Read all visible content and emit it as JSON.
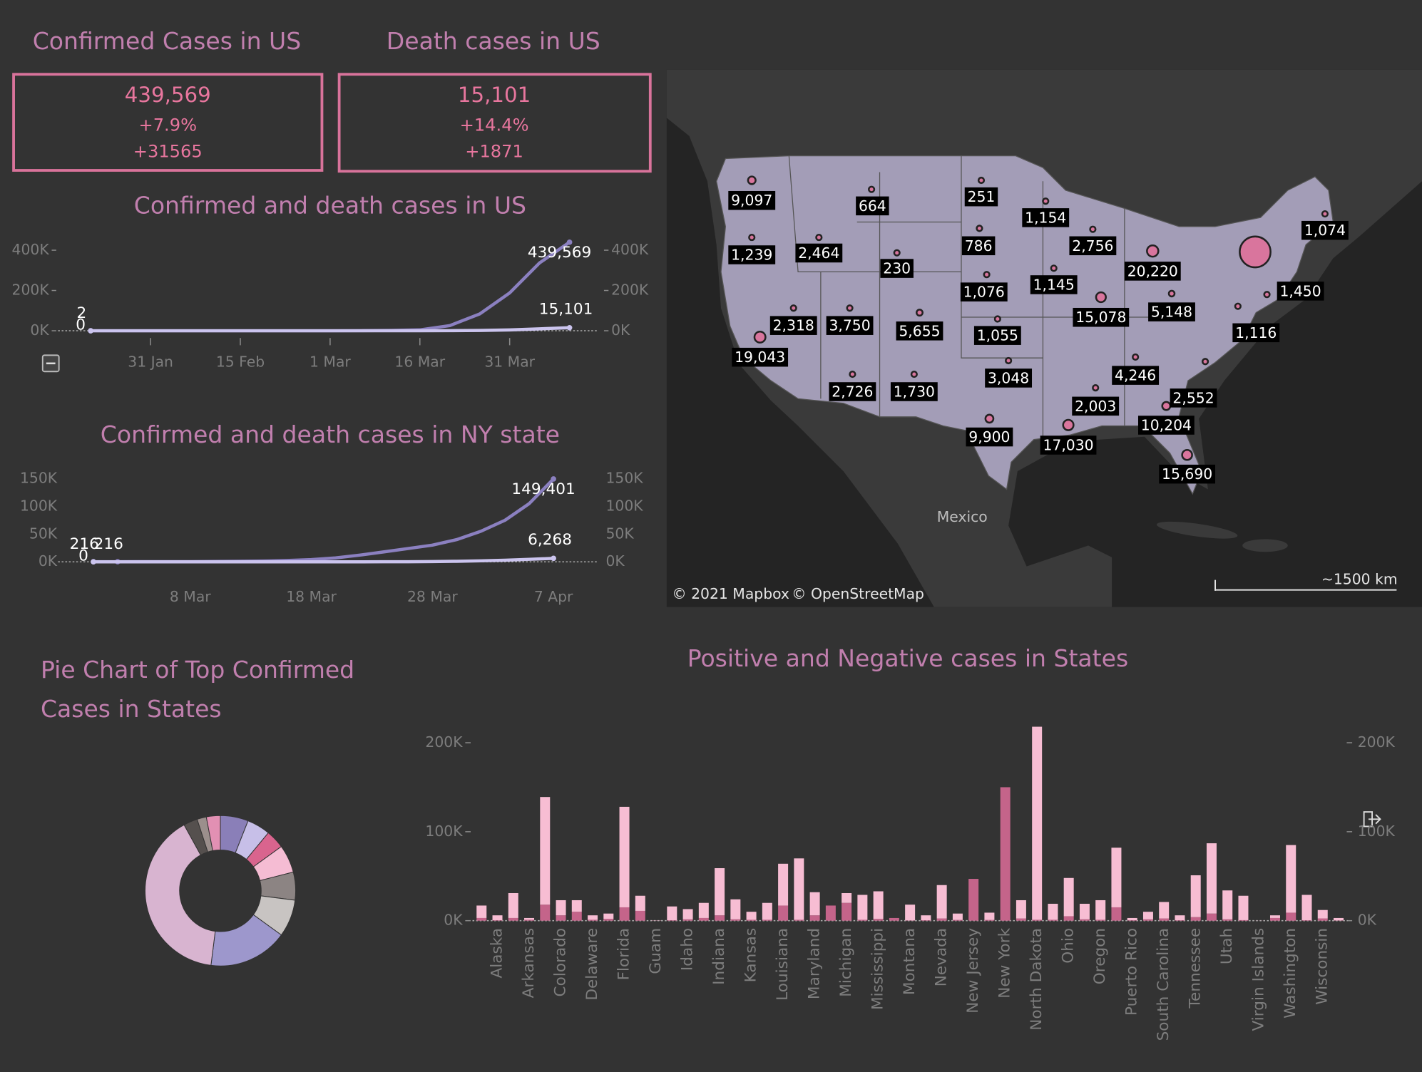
{
  "kpis": [
    {
      "title": "Confirmed Cases in US",
      "value": "439,569",
      "change_pct": "+7.9%",
      "change": "+31565"
    },
    {
      "title": "Death cases in US",
      "value": "15,101",
      "change_pct": "+14.4%",
      "change": "+1871"
    }
  ],
  "chart_data": [
    {
      "type": "line",
      "title": "Confirmed and death cases in US",
      "categories": [
        null,
        null,
        "31 Jan",
        null,
        null,
        "15 Feb",
        null,
        null,
        "1 Mar",
        null,
        null,
        "16 Mar",
        null,
        null,
        "31 Mar",
        null,
        null
      ],
      "series": [
        {
          "color": "#8b80c0",
          "values": [
            2,
            5,
            7,
            12,
            12,
            15,
            15,
            53,
            75,
            319,
            1281,
            4632,
            25489,
            83836,
            188172,
            337072,
            439569
          ],
          "value_labels": [
            "2",
            null,
            null,
            null,
            null,
            null,
            null,
            null,
            null,
            null,
            null,
            null,
            null,
            null,
            null,
            null,
            "439,569"
          ]
        },
        {
          "color": "#cbc4ee",
          "values": [
            0,
            0,
            0,
            0,
            0,
            0,
            0,
            0,
            1,
            11,
            36,
            86,
            302,
            1295,
            4000,
            9600,
            15101
          ],
          "value_labels": [
            "0",
            null,
            null,
            null,
            null,
            null,
            null,
            null,
            null,
            null,
            null,
            null,
            null,
            null,
            null,
            null,
            "15,101"
          ]
        }
      ],
      "ylim": [
        0,
        450000
      ],
      "yticks": [
        {
          "value": 0,
          "label": "0K"
        },
        {
          "value": 200000,
          "label": "200K"
        },
        {
          "value": 400000,
          "label": "400K"
        }
      ]
    },
    {
      "type": "line",
      "title": "Confirmed and death cases in NY state",
      "categories": [
        null,
        null,
        null,
        null,
        "8 Mar",
        null,
        null,
        null,
        null,
        "18 Mar",
        null,
        null,
        null,
        null,
        "28 Mar",
        null,
        null,
        null,
        null,
        "7 Apr"
      ],
      "series": [
        {
          "color": "#8b80c0",
          "values": [
            216,
            216,
            250,
            300,
            400,
            600,
            900,
            1500,
            2500,
            4000,
            7000,
            12000,
            18000,
            24000,
            30000,
            40000,
            55000,
            75000,
            105000,
            149401
          ],
          "value_labels": [
            "216",
            "216",
            null,
            null,
            null,
            null,
            null,
            null,
            null,
            null,
            null,
            null,
            null,
            null,
            null,
            null,
            null,
            null,
            null,
            "149,401"
          ]
        },
        {
          "color": "#cbc4ee",
          "values": [
            0,
            0,
            0,
            0,
            0,
            0,
            0,
            0,
            5,
            10,
            30,
            60,
            100,
            200,
            500,
            1000,
            1800,
            3000,
            4500,
            6268
          ],
          "value_labels": [
            "0",
            null,
            null,
            null,
            null,
            null,
            null,
            null,
            null,
            null,
            null,
            null,
            null,
            null,
            null,
            null,
            null,
            null,
            null,
            "6,268"
          ]
        }
      ],
      "ylim": [
        0,
        160000
      ],
      "yticks": [
        {
          "value": 0,
          "label": "0K"
        },
        {
          "value": 50000,
          "label": "50K"
        },
        {
          "value": 100000,
          "label": "100K"
        },
        {
          "value": 150000,
          "label": "150K"
        }
      ]
    },
    {
      "type": "map",
      "color": "#d9759d",
      "values": [
        9097,
        1239,
        2464,
        664,
        230,
        251,
        786,
        1154,
        2756,
        1074,
        20220,
        1450,
        1076,
        1145,
        15078,
        5148,
        2318,
        3750,
        5655,
        1055,
        19043,
        1116,
        4246,
        2726,
        1730,
        3048,
        2003,
        2552,
        10204,
        9900,
        17030,
        15690,
        149401
      ],
      "value_labels": [
        "9,097",
        "1,239",
        "2,464",
        "664",
        "230",
        "251",
        "786",
        "1,154",
        "2,756",
        "1,074",
        "20,220",
        "1,450",
        "1,076",
        "1,145",
        "15,078",
        "5,148",
        "2,318",
        "3,750",
        "5,655",
        "1,055",
        "19,043",
        "1,116",
        "4,246",
        "2,726",
        "1,730",
        "3,048",
        "2,003",
        "2,552",
        "10,204",
        "9,900",
        "17,030",
        "15,690",
        null
      ],
      "place_label": "Mexico",
      "attribution": [
        "© 2021 Mapbox",
        "© OpenStreetMap"
      ],
      "scale": "~1500 km"
    },
    {
      "type": "pie",
      "title": "Pie Chart of Top Confirmed Cases in States",
      "values": [
        6,
        5,
        4,
        6,
        6,
        8,
        17,
        40,
        3,
        2,
        3
      ],
      "colors": [
        "#8a7fb8",
        "#c7bfe8",
        "#d9648e",
        "#f5bcd3",
        "#8c8483",
        "#c8c4c2",
        "#9d97cc",
        "#d8b4d0",
        "#55504e",
        "#9b8f8c",
        "#e290b3"
      ]
    },
    {
      "type": "bar",
      "title": "Positive and Negative cases in States",
      "stacked": true,
      "categories": [
        null,
        "Alaska",
        null,
        "Arkansas",
        null,
        "Colorado",
        null,
        "Delaware",
        null,
        "Florida",
        null,
        "Guam",
        null,
        "Idaho",
        null,
        "Indiana",
        null,
        "Kansas",
        null,
        "Louisiana",
        null,
        "Maryland",
        null,
        "Michigan",
        null,
        "Mississippi",
        null,
        "Montana",
        null,
        "Nevada",
        null,
        "New Jersey",
        null,
        "New York",
        null,
        "North Dakota",
        null,
        "Ohio",
        null,
        "Oregon",
        null,
        "Puerto Rico",
        null,
        "South Carolina",
        null,
        "Tennessee",
        null,
        "Utah",
        null,
        "Virgin Islands",
        null,
        "Washington",
        null,
        "Wisconsin",
        null
      ],
      "series": [
        {
          "color": "#c4648a",
          "values": [
            3000,
            500,
            3000,
            1000,
            18000,
            6000,
            10000,
            1000,
            2000,
            15000,
            11000,
            100,
            500,
            1500,
            3000,
            6000,
            1500,
            1000,
            1000,
            17000,
            1000,
            6000,
            17000,
            20000,
            1000,
            2000,
            3000,
            300,
            500,
            2500,
            800,
            47000,
            800,
            150000,
            2500,
            1000,
            1000,
            5000,
            1500,
            1000,
            15000,
            500,
            1500,
            2500,
            500,
            4000,
            8000,
            1500,
            600,
            50,
            3000,
            9000,
            500,
            2500,
            300
          ]
        },
        {
          "color": "#f7bdd3",
          "values": [
            14000,
            5500,
            28000,
            2000,
            121000,
            17000,
            13000,
            5000,
            6000,
            113000,
            17000,
            200,
            15500,
            11500,
            17000,
            53000,
            22500,
            9000,
            19000,
            47000,
            69000,
            26000,
            0,
            11000,
            28000,
            31000,
            0,
            17700,
            5500,
            37500,
            7200,
            0,
            8200,
            0,
            20500,
            217000,
            18000,
            43000,
            17500,
            22000,
            67000,
            2500,
            8500,
            18500,
            5500,
            47000,
            79000,
            32500,
            27400,
            50,
            3000,
            76000,
            28500,
            9500,
            2700
          ]
        }
      ],
      "ylim": [
        0,
        220000
      ],
      "yticks": [
        {
          "value": 0,
          "label": "0K"
        },
        {
          "value": 100000,
          "label": "100K"
        },
        {
          "value": 200000,
          "label": "200K"
        }
      ]
    }
  ]
}
